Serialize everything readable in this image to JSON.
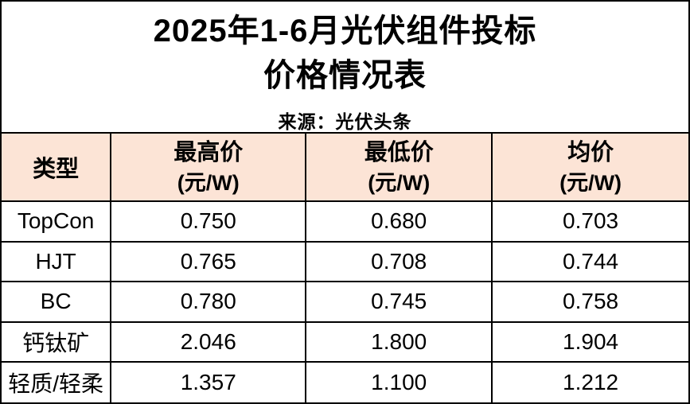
{
  "header": {
    "title_line1": "2025年1-6月光伏组件投标",
    "title_line2": "价格情况表",
    "source": "来源：光伏头条"
  },
  "table": {
    "headers": {
      "type": "类型",
      "max": "最高价",
      "min": "最低价",
      "avg": "均价",
      "unit": "(元/W)"
    },
    "rows": [
      {
        "type": "TopCon",
        "max": "0.750",
        "min": "0.680",
        "avg": "0.703"
      },
      {
        "type": "HJT",
        "max": "0.765",
        "min": "0.708",
        "avg": "0.744"
      },
      {
        "type": "BC",
        "max": "0.780",
        "min": "0.745",
        "avg": "0.758"
      },
      {
        "type": "钙钛矿",
        "max": "2.046",
        "min": "1.800",
        "avg": "1.904"
      },
      {
        "type": "轻质/轻柔",
        "max": "1.357",
        "min": "1.100",
        "avg": "1.212"
      }
    ]
  },
  "colors": {
    "header_bg": "#fce4d6",
    "border": "#000000",
    "text": "#000000",
    "background": "#ffffff"
  },
  "chart_data": {
    "type": "table",
    "title": "2025年1-6月光伏组件投标价格情况表",
    "source": "来源：光伏头条",
    "columns": [
      "类型",
      "最高价(元/W)",
      "最低价(元/W)",
      "均价(元/W)"
    ],
    "rows": [
      {
        "type": "TopCon",
        "max_price": 0.75,
        "min_price": 0.68,
        "avg_price": 0.703
      },
      {
        "type": "HJT",
        "max_price": 0.765,
        "min_price": 0.708,
        "avg_price": 0.744
      },
      {
        "type": "BC",
        "max_price": 0.78,
        "min_price": 0.745,
        "avg_price": 0.758
      },
      {
        "type": "钙钛矿",
        "max_price": 2.046,
        "min_price": 1.8,
        "avg_price": 1.904
      },
      {
        "type": "轻质/轻柔",
        "max_price": 1.357,
        "min_price": 1.1,
        "avg_price": 1.212
      }
    ]
  }
}
